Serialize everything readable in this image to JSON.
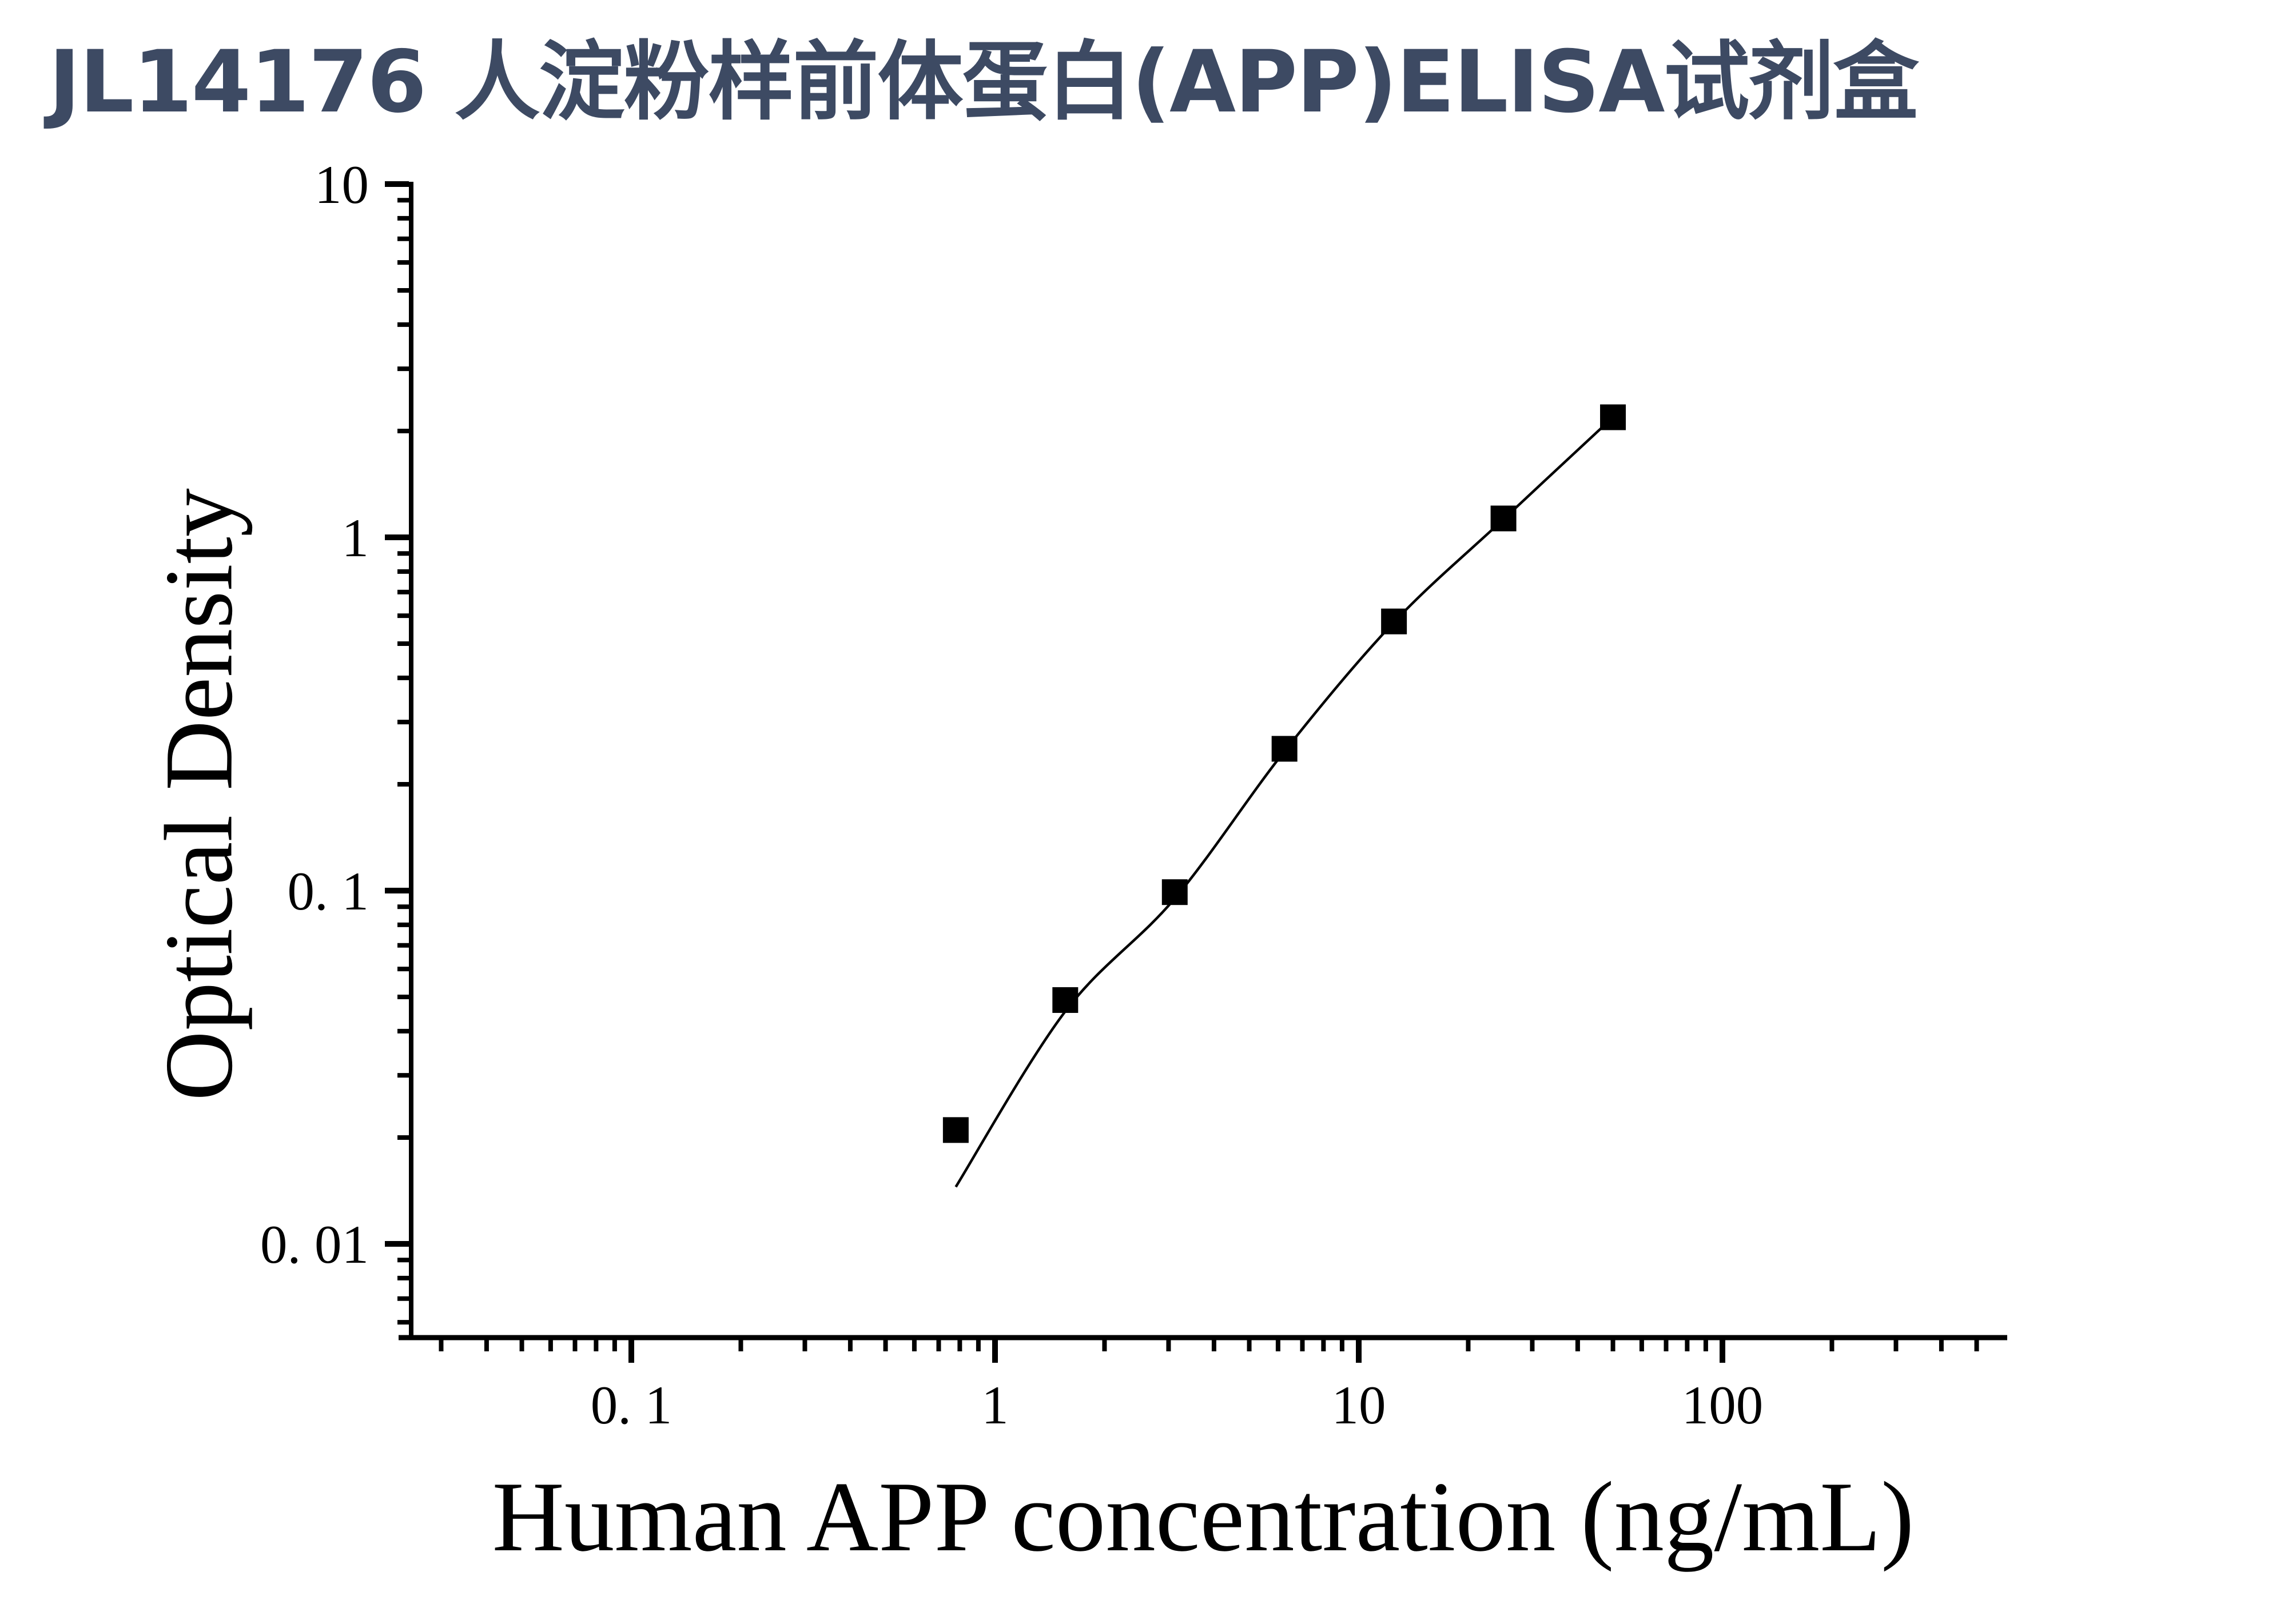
{
  "title": {
    "text": "JL14176 人淀粉样前体蛋白(APP)ELISA试剂盒",
    "color": "#3D4A63"
  },
  "chart_data": {
    "type": "scatter",
    "xlabel": "Human APP concentration (ng/mL)",
    "ylabel": "Optical Density",
    "x_scale": "log",
    "y_scale": "log",
    "x_range": [
      0.023,
      600
    ],
    "y_range": [
      0.0054,
      10
    ],
    "grid": "off",
    "legend": "none",
    "marker_color": "#000000",
    "curve_color": "#000000",
    "x_major_ticks": [
      {
        "value": 0.1,
        "label": "0. 1"
      },
      {
        "value": 1,
        "label": "1"
      },
      {
        "value": 10,
        "label": "10"
      },
      {
        "value": 100,
        "label": "100"
      }
    ],
    "y_major_ticks": [
      {
        "value": 10,
        "label": "10"
      },
      {
        "value": 1,
        "label": "1"
      },
      {
        "value": 0.1,
        "label": "0. 1"
      },
      {
        "value": 0.01,
        "label": "0. 01"
      }
    ],
    "series": [
      {
        "name": "standard-points",
        "marker": "filled-square",
        "x": [
          0.78,
          1.56,
          3.12,
          6.25,
          12.5,
          25,
          50
        ],
        "od": [
          0.021,
          0.049,
          0.099,
          0.252,
          0.578,
          1.131,
          2.187
        ]
      }
    ],
    "fit_curve": {
      "name": "4PL-fit",
      "points": [
        [
          0.78,
          0.0145
        ],
        [
          1.56,
          0.0455
        ],
        [
          3.12,
          0.095
        ],
        [
          6.25,
          0.248
        ],
        [
          12.5,
          0.575
        ],
        [
          25,
          1.125
        ],
        [
          50,
          2.187
        ]
      ]
    }
  }
}
